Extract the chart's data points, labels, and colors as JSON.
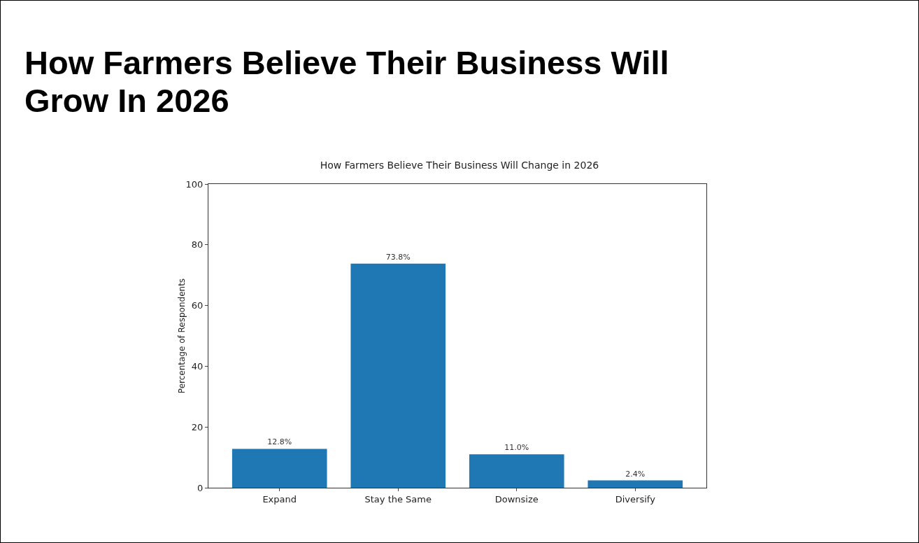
{
  "chart_data": {
    "type": "bar",
    "title": "How Farmers Believe Their Business Will Grow In 2026",
    "subtitle": "How Farmers Believe Their Business Will Change in 2026",
    "ylabel": "Percentage of Respondents",
    "categories": [
      "Expand",
      "Stay the Same",
      "Downsize",
      "Diversify"
    ],
    "values": [
      12.8,
      73.8,
      11.0,
      2.4
    ],
    "value_labels": [
      "12.8%",
      "73.8%",
      "11.0%",
      "2.4%"
    ],
    "color": "#1f77b4",
    "ylim": [
      0,
      100
    ],
    "yticks": [
      0,
      20,
      40,
      60,
      80,
      100
    ],
    "grid": false,
    "legend": false
  }
}
